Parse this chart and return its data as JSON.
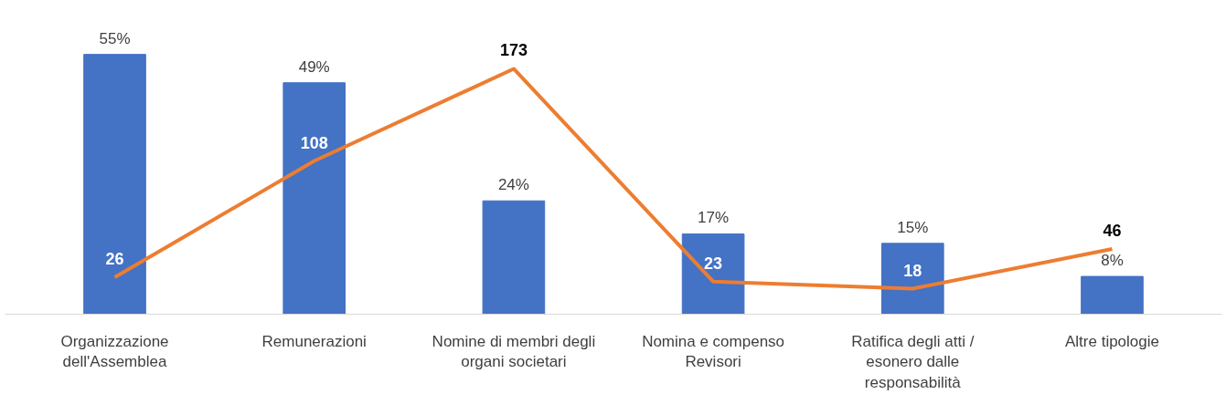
{
  "chart_data": {
    "type": "bar",
    "categories": [
      "Organizzazione dell'Assemblea",
      "Remunerazioni",
      "Nomine di membri degli organi societari",
      "Nomina e compenso Revisori",
      "Ratifica degli atti / esonero dalle responsabilità",
      "Altre tipologie"
    ],
    "tick_labels": "x",
    "grid": false,
    "series": [
      {
        "color": "#4472c4",
        "values": [
          55,
          49,
          24,
          17,
          15,
          8
        ],
        "value_labels": [
          "55%",
          "49%",
          "24%",
          "17%",
          "15%",
          "8%"
        ]
      },
      {
        "type": "line",
        "axis": "y2",
        "color": "#ed7d31",
        "values": [
          26,
          108,
          173,
          23,
          18,
          46
        ],
        "value_labels": [
          "26",
          "108",
          "173",
          "23",
          "18",
          "46"
        ]
      }
    ]
  }
}
